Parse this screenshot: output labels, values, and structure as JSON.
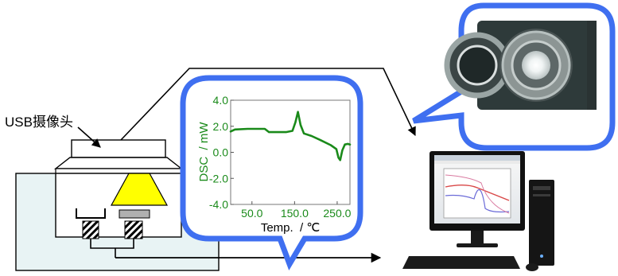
{
  "camera_label": "USB摄像头",
  "dsc_chart": {
    "type": "line",
    "title": "",
    "xlabel": "Temp.  / ℃",
    "ylabel": "DSC  / mW",
    "xlim": [
      0.0,
      280.0
    ],
    "ylim": [
      -4.0,
      4.0
    ],
    "xticks": [
      50.0,
      150.0,
      250.0
    ],
    "xtick_labels": [
      "50.0",
      "150.0",
      "250.0"
    ],
    "yticks": [
      -4.0,
      -2.0,
      0.0,
      2.0,
      4.0
    ],
    "ytick_labels": [
      "-4.0",
      "-2.0",
      "0.0",
      "2.0",
      "4.0"
    ],
    "grid": false,
    "series": [
      {
        "color": "#1a8a1a",
        "x": [
          0,
          10,
          40,
          60,
          80,
          90,
          110,
          130,
          145,
          152,
          158,
          164,
          172,
          190,
          210,
          235,
          248,
          253,
          257,
          262,
          268,
          275,
          280
        ],
        "y": [
          1.6,
          1.75,
          1.8,
          1.8,
          1.8,
          1.55,
          1.55,
          1.55,
          1.65,
          2.3,
          3.1,
          2.1,
          1.45,
          1.25,
          0.95,
          0.55,
          0.25,
          -0.4,
          -0.6,
          0.15,
          0.6,
          0.65,
          0.6
        ]
      }
    ]
  },
  "colors": {
    "bubble_border": "#3f6ff0",
    "curve": "#1a8a1a",
    "tick_labels": "#1a8a1a",
    "furnace_fill": "#e8f3f4",
    "sample_cone": "#ffff00"
  }
}
